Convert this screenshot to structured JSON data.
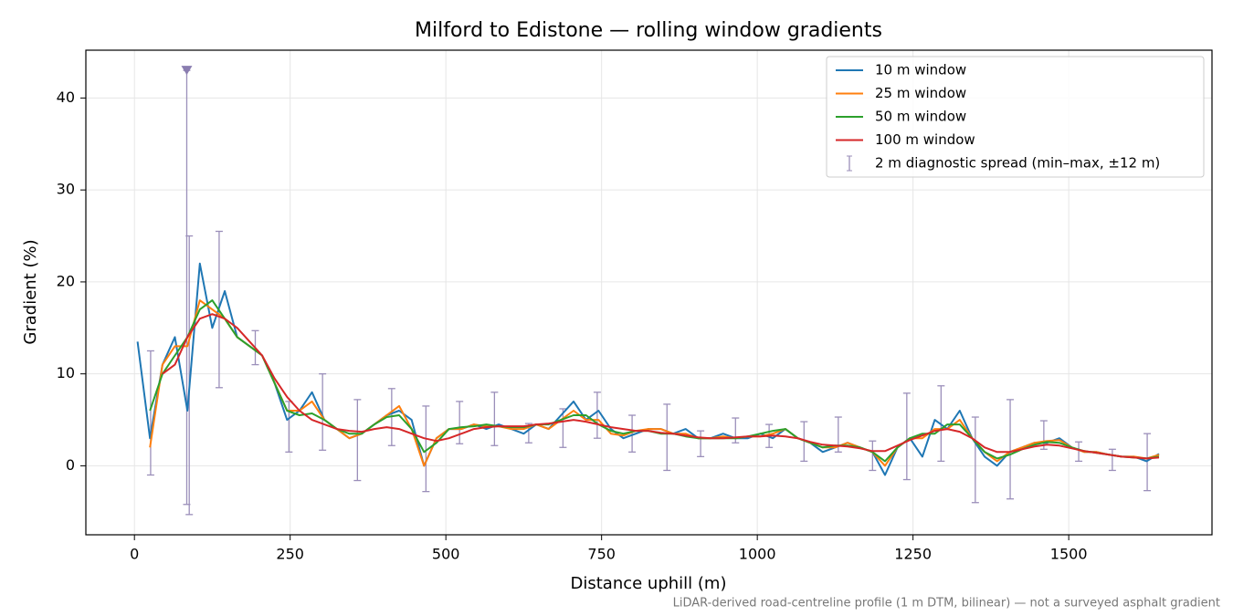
{
  "chart_data": {
    "type": "line",
    "title": "Milford to Edistone — rolling window gradients",
    "xlabel": "Distance uphill (m)",
    "ylabel": "Gradient (%)",
    "footnote": "LiDAR-derived road-centreline profile (1 m DTM, bilinear) — not a surveyed asphalt gradient",
    "xlim": [
      -78,
      1730
    ],
    "ylim": [
      -7.5,
      45.2
    ],
    "xticks": [
      0,
      250,
      500,
      750,
      1000,
      1250,
      1500
    ],
    "yticks": [
      0,
      10,
      20,
      30,
      40
    ],
    "grid": true,
    "legend": "upper right",
    "x": [
      5,
      25,
      45,
      65,
      85,
      105,
      125,
      145,
      165,
      185,
      205,
      225,
      245,
      265,
      285,
      305,
      325,
      345,
      365,
      385,
      405,
      425,
      445,
      465,
      485,
      505,
      525,
      545,
      565,
      585,
      605,
      625,
      645,
      665,
      685,
      705,
      725,
      745,
      765,
      785,
      805,
      825,
      845,
      865,
      885,
      905,
      925,
      945,
      965,
      985,
      1005,
      1025,
      1045,
      1065,
      1085,
      1105,
      1125,
      1145,
      1165,
      1185,
      1205,
      1225,
      1245,
      1265,
      1285,
      1305,
      1325,
      1345,
      1365,
      1385,
      1405,
      1425,
      1445,
      1465,
      1485,
      1505,
      1525,
      1545,
      1565,
      1585,
      1605,
      1625,
      1645
    ],
    "series": [
      {
        "name": "10 m window",
        "color": "#1f77b4",
        "values": [
          13.5,
          3,
          11,
          14,
          6,
          22,
          15,
          19,
          14,
          13,
          12,
          9,
          5,
          6,
          8,
          5,
          4,
          3,
          3.5,
          4.5,
          5.5,
          6,
          5,
          0,
          3,
          4,
          4,
          4.5,
          4,
          4.5,
          4,
          3.5,
          4.5,
          4,
          5.5,
          7,
          5,
          6,
          4,
          3,
          3.5,
          4,
          4,
          3.5,
          4,
          3,
          3,
          3.5,
          3,
          3,
          3.5,
          3,
          4,
          3,
          2.5,
          1.5,
          2,
          2.5,
          2,
          1.5,
          -1,
          2,
          3,
          1,
          5,
          4,
          6,
          3,
          1,
          0,
          1.5,
          2,
          2.5,
          2.5,
          3,
          2,
          1.5,
          1.5,
          1.2,
          1,
          1,
          0.5,
          1.3
        ]
      },
      {
        "name": "25 m window",
        "color": "#ff7f0e",
        "values": [
          null,
          2,
          11,
          13,
          13,
          18,
          17,
          16,
          14,
          13,
          12,
          9,
          6,
          6,
          7,
          5,
          4,
          3,
          3.5,
          4.5,
          5.5,
          6.5,
          4,
          0,
          3,
          4,
          4,
          4.5,
          4.3,
          4.3,
          4,
          4,
          4.5,
          4,
          5,
          6,
          5,
          5,
          3.5,
          3.3,
          3.8,
          4,
          4,
          3.5,
          3.5,
          3,
          3,
          3.2,
          3,
          3.2,
          3.2,
          3.5,
          4,
          3,
          2.5,
          2,
          2,
          2.5,
          2,
          1.5,
          0,
          2,
          3,
          3,
          4,
          4,
          5,
          3,
          1.5,
          0.5,
          1.5,
          2,
          2.5,
          2.7,
          2.8,
          2,
          1.5,
          1.5,
          1.2,
          1,
          1,
          0.8,
          1.2
        ]
      },
      {
        "name": "50 m window",
        "color": "#2ca02c",
        "values": [
          null,
          6,
          10,
          12,
          14,
          17,
          18,
          16,
          14,
          13,
          12,
          9,
          6,
          5.5,
          5.7,
          5,
          4,
          3.5,
          3.5,
          4.5,
          5.3,
          5.5,
          4,
          1.5,
          2.5,
          4,
          4.2,
          4.3,
          4.5,
          4.3,
          4.2,
          4.2,
          4.5,
          4.5,
          5,
          5.5,
          5.5,
          4.5,
          3.8,
          3.5,
          3.8,
          3.8,
          3.5,
          3.5,
          3.2,
          3,
          3,
          3,
          3,
          3.2,
          3.5,
          3.8,
          4,
          3,
          2.5,
          2,
          2.2,
          2.2,
          2,
          1.5,
          0.5,
          2,
          3,
          3.5,
          3.5,
          4.5,
          4.5,
          3,
          1.5,
          0.8,
          1.2,
          1.8,
          2.3,
          2.6,
          2.5,
          2,
          1.6,
          1.4,
          1.2,
          1,
          0.9,
          0.8,
          1
        ]
      },
      {
        "name": "100 m window",
        "color": "#d62728",
        "values": [
          null,
          null,
          10,
          11,
          14,
          16,
          16.5,
          16,
          15,
          13.5,
          12,
          9.5,
          7.5,
          6,
          5,
          4.5,
          4,
          3.8,
          3.7,
          4,
          4.2,
          4,
          3.5,
          3,
          2.7,
          3,
          3.5,
          4,
          4.2,
          4.3,
          4.3,
          4.3,
          4.5,
          4.6,
          4.8,
          5,
          4.8,
          4.5,
          4.2,
          4,
          3.8,
          3.8,
          3.6,
          3.5,
          3.3,
          3.1,
          3,
          3,
          3.1,
          3.2,
          3.2,
          3.3,
          3.2,
          3,
          2.6,
          2.3,
          2.2,
          2.1,
          1.9,
          1.6,
          1.6,
          2.2,
          2.8,
          3.3,
          3.8,
          4,
          3.7,
          3,
          2,
          1.5,
          1.5,
          1.8,
          2.1,
          2.3,
          2.2,
          1.9,
          1.6,
          1.4,
          1.2,
          1,
          0.9,
          0.8,
          0.9
        ]
      }
    ],
    "errorbars": {
      "name": "2 m diagnostic spread (min–max, ±12 m)",
      "color": "#9b8fba",
      "x": [
        26,
        84,
        88,
        136,
        194,
        248,
        302,
        358,
        413,
        468,
        522,
        578,
        633,
        688,
        743,
        799,
        855,
        909,
        965,
        1019,
        1075,
        1130,
        1185,
        1240,
        1295,
        1350,
        1406,
        1460,
        1516,
        1570,
        1626
      ],
      "low": [
        -1,
        -4.2,
        -5.3,
        8.5,
        11,
        1.5,
        1.7,
        -1.6,
        2.2,
        -2.8,
        2.4,
        2.2,
        2.5,
        2,
        3,
        1.5,
        -0.5,
        1,
        2.5,
        2,
        0.5,
        1.5,
        -0.5,
        -1.5,
        0.5,
        -4,
        -3.6,
        1.8,
        0.5,
        -0.5,
        -2.7
      ],
      "high": [
        12.5,
        43,
        25,
        25.5,
        14.7,
        7,
        10,
        7.2,
        8.4,
        6.5,
        7,
        8,
        4.6,
        6.2,
        8,
        5.5,
        6.7,
        3.8,
        5.2,
        4.5,
        4.8,
        5.3,
        2.7,
        7.9,
        8.7,
        5.3,
        7.2,
        4.9,
        2.6,
        1.8,
        3.5
      ]
    }
  }
}
